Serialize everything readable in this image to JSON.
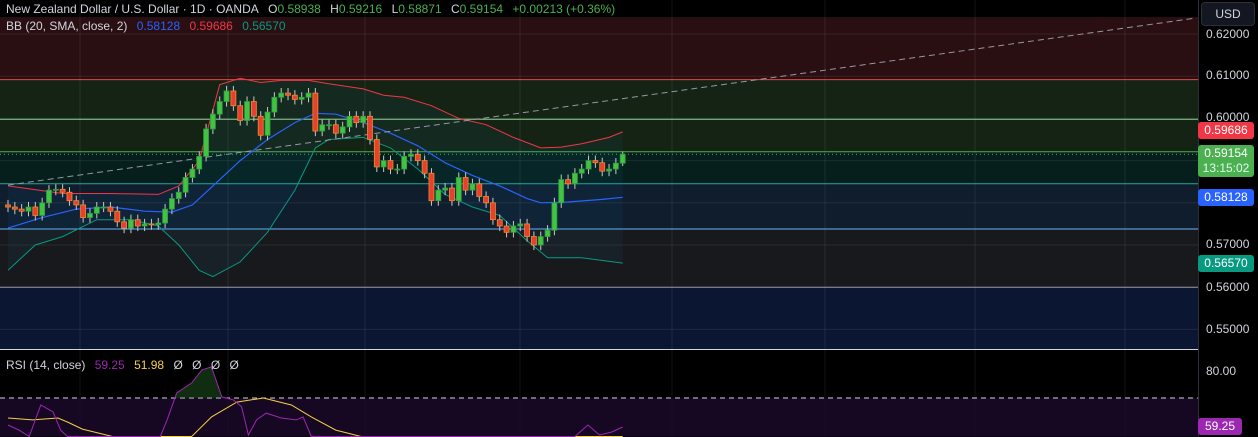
{
  "header": {
    "symbol": "New Zealand Dollar / U.S. Dollar · 1D · OANDA",
    "open_label": "O",
    "open": "0.58938",
    "high_label": "H",
    "high": "0.59216",
    "low_label": "L",
    "low": "0.58871",
    "close_label": "C",
    "close": "0.59154",
    "change": "+0.00213 (+0.36%)"
  },
  "bb_legend": {
    "label": "BB (20, SMA, close, 2)",
    "basis": "0.58128",
    "upper": "0.59686",
    "lower": "0.56570"
  },
  "rsi_legend": {
    "label": "RSI (14, close)",
    "rsi": "59.25",
    "ma": "51.98",
    "extras": [
      "Ø",
      "Ø",
      "Ø",
      "Ø"
    ]
  },
  "axis": {
    "currency": "USD",
    "ticks": [
      "0.62000",
      "0.61000",
      "0.60000",
      "0.57000",
      "0.56000",
      "0.55000"
    ],
    "rsi_ticks": [
      "80.00"
    ],
    "tags": {
      "upper": "0.59686",
      "last": "0.59154",
      "countdown": "13:15:02",
      "basis": "0.58128",
      "lower": "0.56570",
      "rsi": "59.25"
    }
  },
  "colors": {
    "up": "#43c243",
    "down": "#e8402f",
    "basis": "#2962ff",
    "upper": "#f23645",
    "lower": "#089981",
    "rsi": "#9c27b0",
    "rsi_ma": "#f5d142",
    "last": "#4caf50"
  },
  "chart_data": [
    {
      "type": "candlestick",
      "title": "New Zealand Dollar / U.S. Dollar · 1D · OANDA",
      "ylim": [
        0.545,
        0.624
      ],
      "ticks": [
        0.62,
        0.61,
        0.6,
        0.57,
        0.56,
        0.55
      ],
      "grid": true,
      "closes": [
        0.579,
        0.5785,
        0.578,
        0.579,
        0.577,
        0.58,
        0.583,
        0.5832,
        0.5825,
        0.5805,
        0.5795,
        0.5765,
        0.5775,
        0.579,
        0.579,
        0.578,
        0.5755,
        0.574,
        0.576,
        0.5745,
        0.575,
        0.5748,
        0.5752,
        0.5785,
        0.581,
        0.5825,
        0.586,
        0.588,
        0.591,
        0.5975,
        0.601,
        0.604,
        0.6065,
        0.603,
        0.5995,
        0.604,
        0.6005,
        0.596,
        0.6015,
        0.605,
        0.606,
        0.6055,
        0.6045,
        0.605,
        0.606,
        0.597,
        0.5985,
        0.5985,
        0.5965,
        0.598,
        0.6005,
        0.599,
        0.6005,
        0.595,
        0.5885,
        0.59,
        0.588,
        0.588,
        0.591,
        0.5915,
        0.59,
        0.587,
        0.5805,
        0.583,
        0.5835,
        0.5805,
        0.586,
        0.583,
        0.5845,
        0.5815,
        0.58,
        0.576,
        0.5745,
        0.573,
        0.5745,
        0.575,
        0.572,
        0.57,
        0.572,
        0.5735,
        0.58,
        0.5855,
        0.5845,
        0.587,
        0.588,
        0.59,
        0.5895,
        0.5875,
        0.588,
        0.5894,
        0.59154
      ],
      "last_ohlc": [
        0.58938,
        0.59216,
        0.58871,
        0.59154
      ],
      "bb_upper": [
        [
          0,
          0.584
        ],
        [
          8,
          0.5822
        ],
        [
          15,
          0.5822
        ],
        [
          22,
          0.582
        ],
        [
          25,
          0.584
        ],
        [
          28,
          0.59
        ],
        [
          31,
          0.608
        ],
        [
          34,
          0.6095
        ],
        [
          37,
          0.6085
        ],
        [
          40,
          0.609
        ],
        [
          44,
          0.609
        ],
        [
          47,
          0.6082
        ],
        [
          52,
          0.607
        ],
        [
          55,
          0.6055
        ],
        [
          58,
          0.605
        ],
        [
          62,
          0.603
        ],
        [
          66,
          0.6
        ],
        [
          70,
          0.5985
        ],
        [
          74,
          0.5955
        ],
        [
          78,
          0.593
        ],
        [
          81,
          0.5932
        ],
        [
          84,
          0.594
        ],
        [
          88,
          0.5955
        ],
        [
          90,
          0.5968
        ]
      ],
      "bb_basis": [
        [
          0,
          0.574
        ],
        [
          5,
          0.5765
        ],
        [
          10,
          0.5785
        ],
        [
          15,
          0.579
        ],
        [
          20,
          0.578
        ],
        [
          24,
          0.5778
        ],
        [
          27,
          0.5795
        ],
        [
          30,
          0.584
        ],
        [
          34,
          0.59
        ],
        [
          38,
          0.595
        ],
        [
          42,
          0.599
        ],
        [
          45,
          0.6012
        ],
        [
          48,
          0.601
        ],
        [
          52,
          0.599
        ],
        [
          56,
          0.5965
        ],
        [
          60,
          0.5935
        ],
        [
          64,
          0.5895
        ],
        [
          68,
          0.5865
        ],
        [
          72,
          0.584
        ],
        [
          76,
          0.581
        ],
        [
          78,
          0.58
        ],
        [
          82,
          0.5802
        ],
        [
          87,
          0.5808
        ],
        [
          90,
          0.5813
        ]
      ],
      "bb_lower": [
        [
          0,
          0.564
        ],
        [
          4,
          0.57
        ],
        [
          8,
          0.572
        ],
        [
          13,
          0.576
        ],
        [
          18,
          0.576
        ],
        [
          22,
          0.5745
        ],
        [
          25,
          0.57
        ],
        [
          28,
          0.564
        ],
        [
          30,
          0.5625
        ],
        [
          34,
          0.566
        ],
        [
          38,
          0.573
        ],
        [
          42,
          0.583
        ],
        [
          45,
          0.593
        ],
        [
          47,
          0.595
        ],
        [
          52,
          0.5955
        ],
        [
          56,
          0.593
        ],
        [
          60,
          0.588
        ],
        [
          64,
          0.582
        ],
        [
          68,
          0.579
        ],
        [
          72,
          0.577
        ],
        [
          76,
          0.571
        ],
        [
          79,
          0.567
        ],
        [
          84,
          0.567
        ],
        [
          90,
          0.5657
        ]
      ],
      "levels": [
        {
          "price": 0.6092,
          "color": "#e04848"
        },
        {
          "price": 0.5998,
          "color": "#8fd18f"
        },
        {
          "price": 0.5921,
          "color": "#4caf50"
        },
        {
          "price": 0.5845,
          "color": "#26a69a"
        },
        {
          "price": 0.5738,
          "color": "#64b5f6"
        },
        {
          "price": 0.56,
          "color": "#9598a1"
        }
      ],
      "zones": [
        {
          "from": 0.624,
          "to": 0.6092,
          "color": "#2a0f12"
        },
        {
          "from": 0.6092,
          "to": 0.5921,
          "color": "#142314"
        },
        {
          "from": 0.5921,
          "to": 0.5845,
          "color": "#061f1c"
        },
        {
          "from": 0.5845,
          "to": 0.5738,
          "color": "#0f1d2c"
        },
        {
          "from": 0.5738,
          "to": 0.56,
          "color": "#18191c"
        },
        {
          "from": 0.56,
          "to": 0.545,
          "color": "#0b1632"
        }
      ],
      "trendline": [
        [
          0,
          0.5842
        ],
        [
          174,
          0.6238
        ]
      ]
    },
    {
      "type": "line",
      "title": "RSI (14, close)",
      "levels": [
        80,
        70
      ],
      "rsi": [
        [
          0,
          60.0
        ],
        [
          1.6,
          58.1
        ],
        [
          3.1,
          55.6
        ],
        [
          4.8,
          67.4
        ],
        [
          6.6,
          64.8
        ],
        [
          7.7,
          58.1
        ],
        [
          8.7,
          55.6
        ],
        [
          12,
          48
        ],
        [
          18,
          47
        ],
        [
          22.3,
          55.6
        ],
        [
          23.3,
          61.9
        ],
        [
          24.7,
          71.9
        ],
        [
          26.9,
          75.6
        ],
        [
          28.4,
          80.4
        ],
        [
          29.8,
          81.5
        ],
        [
          31.3,
          70.4
        ],
        [
          33,
          69.3
        ],
        [
          34.2,
          66.7
        ],
        [
          35.2,
          56.3
        ],
        [
          36.4,
          61.9
        ],
        [
          37.8,
          64.4
        ],
        [
          40,
          62.6
        ],
        [
          42.2,
          61.9
        ],
        [
          43.2,
          63
        ],
        [
          44.4,
          55.6
        ],
        [
          46,
          48
        ],
        [
          80,
          45
        ],
        [
          83,
          55.6
        ],
        [
          84.9,
          60
        ],
        [
          86.6,
          56.3
        ],
        [
          88.4,
          57.4
        ],
        [
          90,
          59.25
        ]
      ],
      "rsi_ma": [
        [
          0,
          62.6
        ],
        [
          3.6,
          61.9
        ],
        [
          7.3,
          62.6
        ],
        [
          8.7,
          61.1
        ],
        [
          10.9,
          58.5
        ],
        [
          15.3,
          55.6
        ],
        [
          18,
          53
        ],
        [
          26,
          53
        ],
        [
          26.9,
          55.6
        ],
        [
          29.8,
          63
        ],
        [
          33.5,
          68.5
        ],
        [
          37.4,
          70
        ],
        [
          41.5,
          67.4
        ],
        [
          44.4,
          63
        ],
        [
          48,
          58.1
        ],
        [
          51.7,
          55.6
        ],
        [
          55,
          53
        ],
        [
          90,
          51.98
        ]
      ]
    }
  ]
}
